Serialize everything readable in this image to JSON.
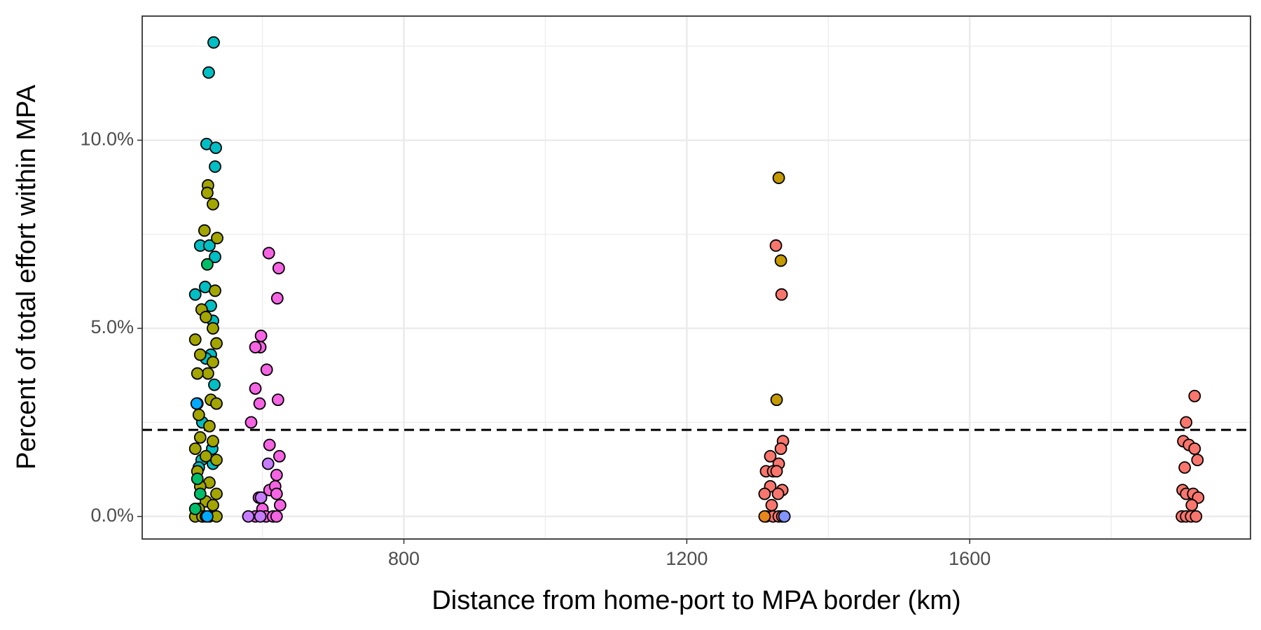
{
  "chart_data": {
    "type": "scatter",
    "xlabel": "Distance from home-port to MPA border (km)",
    "ylabel": "Percent of total effort within MPA",
    "xlim": [
      430,
      1997
    ],
    "ylim": [
      -0.6,
      13.3
    ],
    "xticks": [
      800,
      1200,
      1600
    ],
    "yticks": [
      {
        "value": 0,
        "label": "0.0%"
      },
      {
        "value": 5,
        "label": "5.0%"
      },
      {
        "value": 10,
        "label": "10.0%"
      }
    ],
    "xminor": [
      600,
      1000,
      1400,
      1800
    ],
    "yminor": [
      2.5,
      7.5,
      12.5
    ],
    "grid": true,
    "hline": 2.3,
    "series": [
      {
        "color": "#00bfc4",
        "x": [
          531,
          524,
          521,
          534,
          533,
          533,
          512,
          525,
          519,
          527,
          505,
          530,
          527,
          520,
          508,
          532,
          515,
          529,
          514,
          510,
          530,
          515,
          525
        ],
        "values": [
          12.6,
          11.8,
          9.9,
          9.8,
          9.3,
          6.9,
          7.2,
          7.2,
          6.1,
          5.6,
          5.9,
          5.2,
          4.3,
          4.2,
          3.0,
          3.5,
          2.5,
          1.8,
          1.5,
          1.3,
          1.4,
          0,
          0
        ]
      },
      {
        "color": "#a3a500",
        "x": [
          523,
          522,
          530,
          518,
          536,
          533,
          514,
          520,
          530,
          535,
          505,
          512,
          530,
          523,
          508,
          527,
          535,
          510,
          525,
          512,
          530,
          505,
          520,
          535,
          508,
          525,
          512,
          535,
          520,
          530,
          510,
          505,
          515,
          535
        ],
        "values": [
          8.8,
          8.6,
          8.3,
          7.6,
          7.4,
          6.0,
          5.5,
          5.3,
          5.0,
          4.6,
          4.7,
          4.3,
          4.1,
          3.8,
          3.8,
          3.1,
          3.0,
          2.7,
          2.4,
          2.1,
          2.0,
          1.8,
          1.6,
          1.5,
          1.2,
          0.9,
          0.8,
          0.6,
          0.4,
          0.3,
          0.2,
          0,
          0,
          0
        ]
      },
      {
        "color": "#00be67",
        "x": [
          522,
          508,
          512,
          505,
          520
        ],
        "values": [
          6.7,
          1.0,
          0.6,
          0.2,
          0
        ]
      },
      {
        "color": "#00a9ff",
        "x": [
          507,
          522
        ],
        "values": [
          3.0,
          0
        ]
      },
      {
        "color": "#f564e3",
        "x": [
          609,
          623,
          621,
          598,
          597,
          590,
          606,
          590,
          596,
          622,
          584,
          610,
          624,
          620,
          610,
          618,
          620,
          595,
          625,
          600,
          590,
          605,
          615,
          620
        ],
        "values": [
          7.0,
          6.6,
          5.8,
          4.8,
          4.5,
          4.5,
          3.9,
          3.4,
          3.0,
          3.1,
          2.5,
          1.9,
          1.6,
          1.1,
          0.7,
          0.8,
          0.6,
          0.5,
          0.3,
          0.2,
          0,
          0,
          0,
          0
        ]
      },
      {
        "color": "#c77cff",
        "x": [
          608,
          598,
          580,
          597
        ],
        "values": [
          1.4,
          0.5,
          0,
          0
        ]
      },
      {
        "color": "#c49a00",
        "x": [
          1330,
          1333,
          1327
        ],
        "values": [
          9.0,
          6.8,
          3.1
        ]
      },
      {
        "color": "#f8766d",
        "x": [
          1326,
          1334,
          1336,
          1333,
          1318,
          1330,
          1312,
          1322,
          1327,
          1318,
          1335,
          1310,
          1329,
          1320,
          1312,
          1322,
          1330,
          1335
        ],
        "values": [
          7.2,
          5.9,
          2.0,
          1.8,
          1.6,
          1.4,
          1.2,
          1.2,
          1.2,
          0.8,
          0.7,
          0.6,
          0.6,
          0.3,
          0,
          0,
          0,
          0
        ]
      },
      {
        "color": "#e7861b",
        "x": [
          1310
        ],
        "values": [
          0
        ]
      },
      {
        "color": "#8494ff",
        "x": [
          1338
        ],
        "values": [
          0
        ]
      },
      {
        "color": "#f8766d",
        "x": [
          1918,
          1906,
          1902,
          1910,
          1918,
          1922,
          1904,
          1901,
          1906,
          1916,
          1923,
          1914,
          1900,
          1906,
          1913,
          1920
        ],
        "values": [
          3.2,
          2.5,
          2.0,
          1.9,
          1.8,
          1.5,
          1.3,
          0.7,
          0.6,
          0.6,
          0.5,
          0.3,
          0,
          0,
          0,
          0
        ]
      }
    ]
  }
}
